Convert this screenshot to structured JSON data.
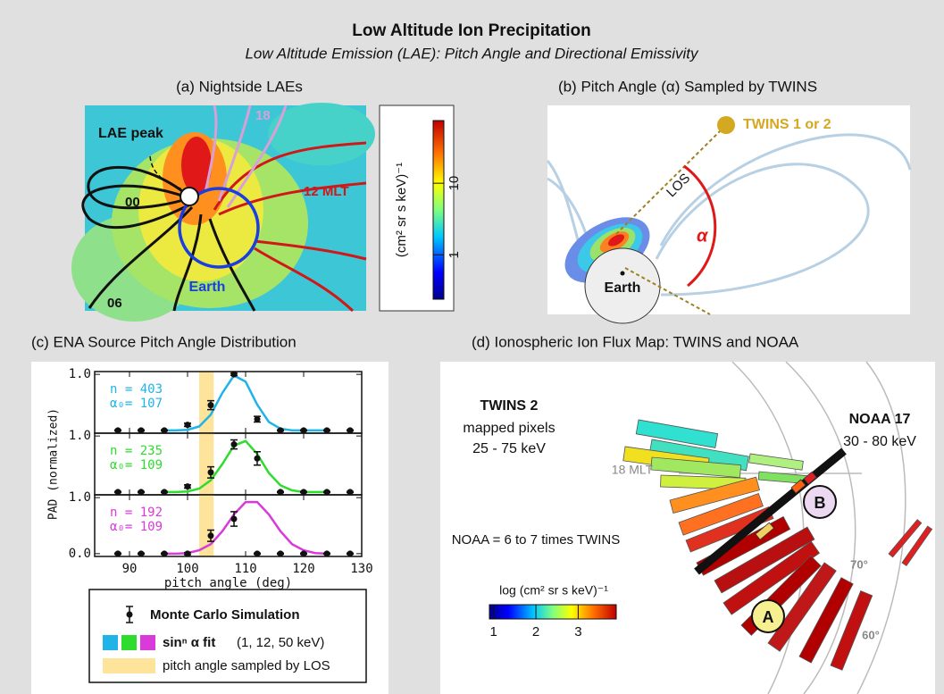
{
  "title": "Low Altitude Ion Precipitation",
  "subtitle": "Low Altitude Emission (LAE):  Pitch Angle and Directional Emissivity",
  "panels": {
    "a": {
      "title": "(a)  Nightside LAEs",
      "lae_peak": "LAE peak",
      "mlt_00": "00",
      "mlt_12": "12 MLT",
      "mlt_06": "06",
      "mlt_18": "18",
      "earth": "Earth",
      "colorbar": {
        "label": "(cm² sr s keV)⁻¹",
        "range": [
          0.24,
          75
        ],
        "ticks": [
          1,
          10
        ]
      }
    },
    "b": {
      "title": "(b)  Pitch Angle (α) Sampled by TWINS",
      "twins": "TWINS 1 or 2",
      "los": "LOS",
      "alpha": "α",
      "earth": "Earth"
    },
    "c": {
      "title": "(c)  ENA Source Pitch Angle Distribution"
    },
    "d": {
      "title": "(d)  Ionospheric Ion Flux Map:  TWINS and NOAA",
      "twins_name": "TWINS 2",
      "twins_line1": "mapped pixels",
      "twins_line2": "25 - 75 keV",
      "noaa_name": "NOAA 17",
      "noaa_energy": "30 - 80 keV",
      "mlt_18": "18 MLT",
      "ratio": "NOAA = 6 to 7 times TWINS",
      "lat_70": "70°",
      "lat_60": "60°",
      "marker_a": "A",
      "marker_b": "B",
      "colorbar": {
        "label": "log (cm² sr s keV)⁻¹",
        "range": [
          0.9,
          3.9
        ],
        "ticks": [
          1,
          2,
          3
        ]
      }
    }
  },
  "chart_data": {
    "type": "line",
    "xlabel": "pitch angle (deg)",
    "ylabel": "PAD (normalized)",
    "xlim": [
      84,
      130
    ],
    "xticks": [
      90,
      100,
      110,
      120,
      130
    ],
    "ylim": [
      -0.05,
      1.05
    ],
    "highlight": [
      102,
      104.5
    ],
    "highlight_color": "#fde49a",
    "legend": {
      "points": "Monte Carlo Simulation",
      "fit": "sinⁿ α  fit",
      "fit_energies": "(1,  12,  50 keV)",
      "band": "pitch angle sampled by LOS"
    },
    "fit_x": [
      96,
      98,
      100,
      102,
      104,
      106,
      108,
      110,
      112,
      114,
      116,
      118,
      120,
      122,
      124
    ],
    "points_x": [
      88,
      92,
      96,
      100,
      104,
      108,
      112,
      116,
      120,
      124,
      128
    ],
    "subplots": [
      {
        "n": "n = 403",
        "alpha": "α₀= 107",
        "color": "#1fb3e8",
        "yticks": [
          {
            "value": 1,
            "label": "1.0"
          }
        ],
        "points": [
          0,
          0,
          0,
          0.1,
          0.45,
          1.0,
          0.2,
          0,
          0,
          0,
          0
        ],
        "errors": [
          0.01,
          0.01,
          0.01,
          0.03,
          0.08,
          0.02,
          0.05,
          0.01,
          0.01,
          0.01,
          0.01
        ],
        "fit": [
          0,
          0,
          0.01,
          0.07,
          0.28,
          0.67,
          0.98,
          0.87,
          0.46,
          0.15,
          0.03,
          0,
          0,
          0,
          0
        ]
      },
      {
        "n": "n = 235",
        "alpha": "α₀= 109",
        "color": "#2edc2e",
        "yticks": [
          {
            "value": 1,
            "label": "1.0"
          }
        ],
        "points": [
          0,
          0,
          0,
          0.1,
          0.35,
          0.85,
          0.6,
          0,
          0,
          0,
          0
        ],
        "errors": [
          0.01,
          0.01,
          0.01,
          0.03,
          0.1,
          0.08,
          0.12,
          0.01,
          0.01,
          0.01,
          0.01
        ],
        "fit": [
          0,
          0,
          0.01,
          0.06,
          0.21,
          0.5,
          0.83,
          0.91,
          0.68,
          0.34,
          0.12,
          0.03,
          0,
          0,
          0
        ]
      },
      {
        "n": "n = 192",
        "alpha": "α₀= 109",
        "color": "#d93ad9",
        "yticks": [
          {
            "value": 1,
            "label": "1.0"
          },
          {
            "value": 0,
            "label": "0.0"
          }
        ],
        "points": [
          0,
          0,
          0,
          0,
          0.32,
          0.62,
          0,
          0,
          0,
          0,
          0
        ],
        "errors": [
          0.01,
          0.01,
          0.01,
          0.02,
          0.1,
          0.13,
          0.01,
          0.01,
          0.01,
          0.01,
          0.01
        ],
        "fit": [
          0,
          0,
          0.01,
          0.06,
          0.17,
          0.4,
          0.7,
          0.92,
          0.92,
          0.7,
          0.4,
          0.17,
          0.06,
          0.01,
          0
        ]
      }
    ]
  }
}
